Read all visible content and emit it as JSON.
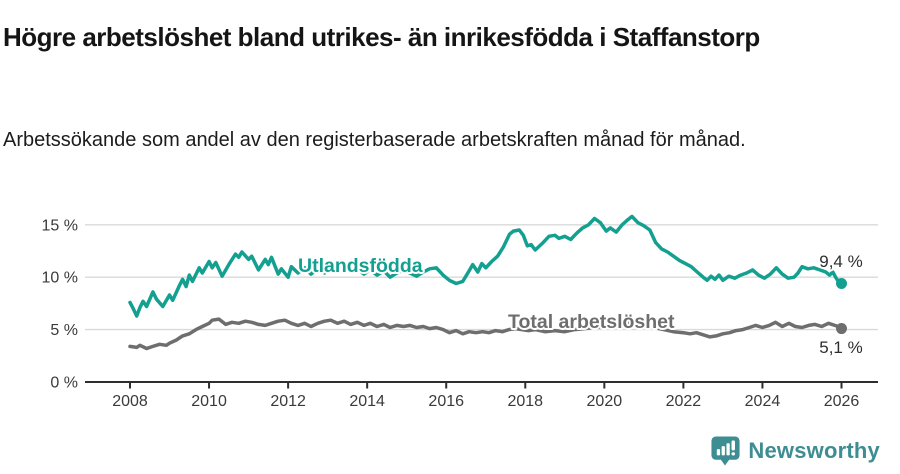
{
  "header": {
    "title": "Högre arbetslöshet bland utrikes- än inrikesfödda i Staffanstorp",
    "subtitle": "Arbetssökande som andel av den registerbaserade arbetskraften månad för månad."
  },
  "footer": {
    "brand": "Newsworthy",
    "logo_icon": "bar-chart-speech-bubble-icon"
  },
  "colors": {
    "foreign_born": "#14a091",
    "total": "#6e6e6e",
    "grid": "#d9d9d9",
    "axis": "#2e2e2e",
    "brand": "#3e8d93"
  },
  "chart_data": {
    "type": "line",
    "title": "Högre arbetslöshet bland utrikes- än inrikesfödda i Staffanstorp",
    "xlabel": "",
    "ylabel": "",
    "x_ticks": [
      2008,
      2010,
      2012,
      2014,
      2016,
      2018,
      2020,
      2022,
      2024,
      2026
    ],
    "y_ticks": [
      {
        "value": 0,
        "label": "0 %"
      },
      {
        "value": 5,
        "label": "5 %"
      },
      {
        "value": 10,
        "label": "10 %"
      },
      {
        "value": 15,
        "label": "15 %"
      }
    ],
    "x_range": [
      2008,
      2026
    ],
    "ylim": [
      0,
      17
    ],
    "grid": true,
    "legend_position": "inline-labels",
    "series": [
      {
        "name": "Utlandsfödda",
        "color_key": "foreign_born",
        "end_label": "9,4 %",
        "end_value": 9.4,
        "points": [
          [
            2008.0,
            7.6
          ],
          [
            2008.08,
            7.0
          ],
          [
            2008.17,
            6.3
          ],
          [
            2008.25,
            7.1
          ],
          [
            2008.33,
            7.7
          ],
          [
            2008.42,
            7.2
          ],
          [
            2008.58,
            8.6
          ],
          [
            2008.67,
            7.9
          ],
          [
            2008.83,
            7.2
          ],
          [
            2009.0,
            8.3
          ],
          [
            2009.08,
            7.8
          ],
          [
            2009.25,
            9.2
          ],
          [
            2009.33,
            9.8
          ],
          [
            2009.42,
            9.1
          ],
          [
            2009.5,
            10.2
          ],
          [
            2009.58,
            9.6
          ],
          [
            2009.75,
            10.9
          ],
          [
            2009.83,
            10.4
          ],
          [
            2010.0,
            11.5
          ],
          [
            2010.08,
            10.9
          ],
          [
            2010.17,
            11.4
          ],
          [
            2010.33,
            10.1
          ],
          [
            2010.5,
            11.2
          ],
          [
            2010.67,
            12.2
          ],
          [
            2010.75,
            11.9
          ],
          [
            2010.83,
            12.4
          ],
          [
            2011.0,
            11.7
          ],
          [
            2011.08,
            12.0
          ],
          [
            2011.25,
            10.7
          ],
          [
            2011.42,
            11.7
          ],
          [
            2011.5,
            11.2
          ],
          [
            2011.58,
            11.9
          ],
          [
            2011.75,
            10.3
          ],
          [
            2011.83,
            10.8
          ],
          [
            2012.0,
            10.0
          ],
          [
            2012.08,
            11.0
          ],
          [
            2012.25,
            10.4
          ],
          [
            2012.42,
            10.9
          ],
          [
            2012.58,
            10.3
          ],
          [
            2012.75,
            10.8
          ],
          [
            2012.92,
            10.4
          ],
          [
            2013.08,
            11.1
          ],
          [
            2013.25,
            10.6
          ],
          [
            2013.42,
            11.0
          ],
          [
            2013.58,
            10.5
          ],
          [
            2013.75,
            10.8
          ],
          [
            2013.92,
            10.3
          ],
          [
            2014.08,
            10.7
          ],
          [
            2014.25,
            10.2
          ],
          [
            2014.42,
            10.6
          ],
          [
            2014.58,
            10.0
          ],
          [
            2014.75,
            10.4
          ],
          [
            2014.92,
            10.7
          ],
          [
            2015.08,
            10.4
          ],
          [
            2015.25,
            10.1
          ],
          [
            2015.42,
            10.5
          ],
          [
            2015.58,
            10.8
          ],
          [
            2015.75,
            10.9
          ],
          [
            2015.92,
            10.2
          ],
          [
            2016.08,
            9.7
          ],
          [
            2016.25,
            9.4
          ],
          [
            2016.42,
            9.6
          ],
          [
            2016.58,
            10.6
          ],
          [
            2016.67,
            11.2
          ],
          [
            2016.8,
            10.5
          ],
          [
            2016.9,
            11.3
          ],
          [
            2017.0,
            10.9
          ],
          [
            2017.15,
            11.5
          ],
          [
            2017.3,
            12.0
          ],
          [
            2017.45,
            12.9
          ],
          [
            2017.6,
            14.1
          ],
          [
            2017.7,
            14.4
          ],
          [
            2017.85,
            14.5
          ],
          [
            2017.95,
            14.0
          ],
          [
            2018.05,
            13.0
          ],
          [
            2018.15,
            13.1
          ],
          [
            2018.25,
            12.6
          ],
          [
            2018.45,
            13.3
          ],
          [
            2018.6,
            13.9
          ],
          [
            2018.75,
            14.0
          ],
          [
            2018.85,
            13.7
          ],
          [
            2019.0,
            13.9
          ],
          [
            2019.15,
            13.6
          ],
          [
            2019.3,
            14.2
          ],
          [
            2019.45,
            14.7
          ],
          [
            2019.6,
            15.0
          ],
          [
            2019.75,
            15.6
          ],
          [
            2019.9,
            15.2
          ],
          [
            2020.05,
            14.4
          ],
          [
            2020.15,
            14.7
          ],
          [
            2020.3,
            14.3
          ],
          [
            2020.45,
            15.0
          ],
          [
            2020.6,
            15.5
          ],
          [
            2020.7,
            15.8
          ],
          [
            2020.85,
            15.2
          ],
          [
            2021.0,
            14.9
          ],
          [
            2021.15,
            14.5
          ],
          [
            2021.3,
            13.3
          ],
          [
            2021.45,
            12.7
          ],
          [
            2021.6,
            12.4
          ],
          [
            2021.75,
            12.0
          ],
          [
            2021.9,
            11.6
          ],
          [
            2022.05,
            11.3
          ],
          [
            2022.2,
            11.0
          ],
          [
            2022.35,
            10.5
          ],
          [
            2022.5,
            10.0
          ],
          [
            2022.6,
            9.7
          ],
          [
            2022.7,
            10.1
          ],
          [
            2022.8,
            9.8
          ],
          [
            2022.9,
            10.2
          ],
          [
            2023.0,
            9.7
          ],
          [
            2023.15,
            10.1
          ],
          [
            2023.3,
            9.9
          ],
          [
            2023.45,
            10.2
          ],
          [
            2023.6,
            10.4
          ],
          [
            2023.75,
            10.7
          ],
          [
            2023.9,
            10.2
          ],
          [
            2024.05,
            9.9
          ],
          [
            2024.2,
            10.3
          ],
          [
            2024.35,
            10.9
          ],
          [
            2024.5,
            10.3
          ],
          [
            2024.65,
            9.9
          ],
          [
            2024.8,
            10.0
          ],
          [
            2024.9,
            10.4
          ],
          [
            2025.0,
            11.0
          ],
          [
            2025.15,
            10.8
          ],
          [
            2025.3,
            10.9
          ],
          [
            2025.45,
            10.7
          ],
          [
            2025.6,
            10.5
          ],
          [
            2025.7,
            10.2
          ],
          [
            2025.78,
            10.5
          ],
          [
            2025.85,
            10.0
          ],
          [
            2025.92,
            9.6
          ],
          [
            2026.0,
            9.4
          ]
        ]
      },
      {
        "name": "Total arbetslöshet",
        "color_key": "total",
        "end_label": "5,1 %",
        "end_value": 5.1,
        "points": [
          [
            2008.0,
            3.4
          ],
          [
            2008.17,
            3.3
          ],
          [
            2008.25,
            3.5
          ],
          [
            2008.42,
            3.2
          ],
          [
            2008.58,
            3.4
          ],
          [
            2008.75,
            3.6
          ],
          [
            2008.92,
            3.5
          ],
          [
            2009.0,
            3.7
          ],
          [
            2009.17,
            4.0
          ],
          [
            2009.33,
            4.4
          ],
          [
            2009.5,
            4.6
          ],
          [
            2009.67,
            5.0
          ],
          [
            2009.83,
            5.3
          ],
          [
            2010.0,
            5.6
          ],
          [
            2010.08,
            5.9
          ],
          [
            2010.25,
            6.0
          ],
          [
            2010.42,
            5.5
          ],
          [
            2010.58,
            5.7
          ],
          [
            2010.75,
            5.6
          ],
          [
            2010.92,
            5.8
          ],
          [
            2011.08,
            5.7
          ],
          [
            2011.25,
            5.5
          ],
          [
            2011.42,
            5.4
          ],
          [
            2011.58,
            5.6
          ],
          [
            2011.75,
            5.8
          ],
          [
            2011.92,
            5.9
          ],
          [
            2012.08,
            5.6
          ],
          [
            2012.25,
            5.4
          ],
          [
            2012.42,
            5.6
          ],
          [
            2012.58,
            5.3
          ],
          [
            2012.75,
            5.6
          ],
          [
            2012.92,
            5.8
          ],
          [
            2013.08,
            5.9
          ],
          [
            2013.25,
            5.6
          ],
          [
            2013.42,
            5.8
          ],
          [
            2013.58,
            5.5
          ],
          [
            2013.75,
            5.7
          ],
          [
            2013.92,
            5.4
          ],
          [
            2014.08,
            5.6
          ],
          [
            2014.25,
            5.3
          ],
          [
            2014.42,
            5.5
          ],
          [
            2014.58,
            5.2
          ],
          [
            2014.75,
            5.4
          ],
          [
            2014.92,
            5.3
          ],
          [
            2015.08,
            5.4
          ],
          [
            2015.25,
            5.2
          ],
          [
            2015.42,
            5.3
          ],
          [
            2015.58,
            5.1
          ],
          [
            2015.75,
            5.2
          ],
          [
            2015.92,
            5.0
          ],
          [
            2016.08,
            4.7
          ],
          [
            2016.25,
            4.9
          ],
          [
            2016.42,
            4.6
          ],
          [
            2016.58,
            4.8
          ],
          [
            2016.75,
            4.7
          ],
          [
            2016.92,
            4.8
          ],
          [
            2017.08,
            4.7
          ],
          [
            2017.25,
            4.9
          ],
          [
            2017.42,
            4.8
          ],
          [
            2017.58,
            5.0
          ],
          [
            2017.75,
            5.1
          ],
          [
            2017.92,
            5.0
          ],
          [
            2018.08,
            4.9
          ],
          [
            2018.25,
            5.0
          ],
          [
            2018.5,
            4.8
          ],
          [
            2018.75,
            4.9
          ],
          [
            2019.0,
            4.8
          ],
          [
            2019.25,
            5.0
          ],
          [
            2019.5,
            5.1
          ],
          [
            2019.75,
            5.2
          ],
          [
            2020.0,
            5.3
          ],
          [
            2020.25,
            5.6
          ],
          [
            2020.42,
            5.8
          ],
          [
            2020.58,
            5.7
          ],
          [
            2020.83,
            5.5
          ],
          [
            2021.0,
            5.4
          ],
          [
            2021.25,
            5.2
          ],
          [
            2021.5,
            5.0
          ],
          [
            2021.75,
            4.8
          ],
          [
            2022.0,
            4.7
          ],
          [
            2022.17,
            4.6
          ],
          [
            2022.33,
            4.7
          ],
          [
            2022.5,
            4.5
          ],
          [
            2022.67,
            4.3
          ],
          [
            2022.83,
            4.4
          ],
          [
            2023.0,
            4.6
          ],
          [
            2023.17,
            4.7
          ],
          [
            2023.33,
            4.9
          ],
          [
            2023.5,
            5.0
          ],
          [
            2023.67,
            5.2
          ],
          [
            2023.83,
            5.4
          ],
          [
            2024.0,
            5.2
          ],
          [
            2024.17,
            5.4
          ],
          [
            2024.33,
            5.7
          ],
          [
            2024.5,
            5.3
          ],
          [
            2024.67,
            5.6
          ],
          [
            2024.83,
            5.3
          ],
          [
            2025.0,
            5.2
          ],
          [
            2025.17,
            5.4
          ],
          [
            2025.33,
            5.5
          ],
          [
            2025.5,
            5.3
          ],
          [
            2025.67,
            5.6
          ],
          [
            2025.83,
            5.4
          ],
          [
            2025.92,
            5.3
          ],
          [
            2026.0,
            5.1
          ]
        ]
      }
    ]
  }
}
